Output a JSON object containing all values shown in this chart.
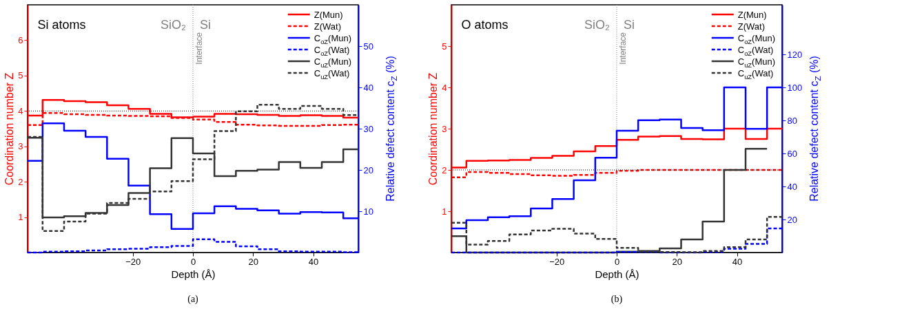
{
  "chart_data": [
    {
      "type": "step",
      "xlabel": "Depth (Å)",
      "ylabel": "Coordination number Z",
      "y2label": "Relative defect content c$_{Z}$ (%)",
      "x": [
        -55,
        -50,
        -42.86,
        -35.71,
        -28.57,
        -21.43,
        -14.29,
        -7.14,
        0,
        7.14,
        14.29,
        21.43,
        28.57,
        35.71,
        42.86,
        50,
        55
      ],
      "xlim": [
        -55,
        55
      ],
      "xticks": [
        -20,
        0,
        20,
        40
      ],
      "ylim": [
        0,
        7
      ],
      "yticks": [
        1,
        2,
        3,
        4,
        5,
        6
      ],
      "y2lim": [
        0,
        60
      ],
      "y2ticks": [
        10,
        20,
        30,
        40,
        50
      ],
      "legend": "top right",
      "grid": false,
      "series": [
        {
          "name": "Z(Mun)",
          "color": "#ff0000",
          "line_style": "solid",
          "values": [
            3.87,
            4.31,
            4.28,
            4.25,
            4.16,
            4.06,
            3.92,
            3.82,
            3.84,
            3.92,
            3.91,
            3.89,
            3.86,
            3.88,
            3.86,
            3.81,
            3.81
          ]
        },
        {
          "name": "Z(Wat)",
          "color": "#ff0000",
          "line_style": "dashed",
          "values": [
            3.6,
            3.94,
            3.91,
            3.89,
            3.87,
            3.86,
            3.85,
            3.8,
            3.76,
            3.69,
            3.61,
            3.59,
            3.58,
            3.58,
            3.6,
            3.61,
            3.61
          ]
        },
        {
          "name": "C$_{oZ}$(Mun)",
          "color": "#0000ff",
          "line_style": "solid",
          "axis": "y2",
          "values": [
            22.2,
            31.3,
            29.5,
            28.0,
            22.7,
            16.2,
            9.3,
            5.7,
            9.5,
            11.2,
            10.6,
            10.2,
            9.4,
            9.8,
            9.7,
            8.3,
            8.3
          ]
        },
        {
          "name": "C$_{oZ}$(Wat)",
          "color": "#0000ff",
          "line_style": "dashed",
          "axis": "y2",
          "values": [
            0,
            0.2,
            0.3,
            0.5,
            0.8,
            0.9,
            1.3,
            1.6,
            3.2,
            2.6,
            1.5,
            0.8,
            0.3,
            0.2,
            0.2,
            0.1,
            0.1
          ]
        },
        {
          "name": "C$_{uZ}$(Mun)",
          "color": "#333333",
          "line_style": "solid",
          "axis": "y2",
          "values": [
            27.8,
            8.5,
            8.8,
            9.6,
            11.5,
            14.4,
            20.4,
            27.7,
            24.0,
            18.5,
            19.8,
            20.1,
            21.9,
            20.5,
            21.9,
            25.0,
            25.0
          ]
        },
        {
          "name": "C$_{uZ}$(Wat)",
          "color": "#333333",
          "line_style": "dashed",
          "axis": "y2",
          "values": [
            28.0,
            5.2,
            7.5,
            9.4,
            12.0,
            13.0,
            14.8,
            17.3,
            22.6,
            29.4,
            34.2,
            35.8,
            34.8,
            35.5,
            34.8,
            33.3,
            33.3
          ]
        }
      ],
      "ref_lines": [
        {
          "axis": "x",
          "value": 0,
          "label": "Interface",
          "color": "#808080",
          "line_style": "dotted"
        },
        {
          "axis": "y",
          "value": 4,
          "label": null,
          "color": "#000000",
          "line_style": "dotted"
        }
      ],
      "annotations": [
        "Si atoms",
        "SiO₂",
        "Si",
        "(a)"
      ]
    },
    {
      "type": "step",
      "xlabel": "Depth (Å)",
      "ylabel": "Coordination number Z",
      "y2label": "Relative defect content c$_{Z}$ (%)",
      "x": [
        -55,
        -50,
        -42.86,
        -35.71,
        -28.57,
        -21.43,
        -14.29,
        -7.14,
        0,
        7.14,
        14.29,
        21.43,
        28.57,
        35.71,
        42.86,
        50,
        55
      ],
      "xlim": [
        -55,
        55
      ],
      "xticks": [
        -20,
        0,
        20,
        40
      ],
      "ylim": [
        0,
        6
      ],
      "yticks": [
        1,
        2,
        3,
        4,
        5
      ],
      "y2lim": [
        0,
        150
      ],
      "y2ticks": [
        20,
        40,
        60,
        80,
        100,
        120
      ],
      "legend": "top right",
      "grid": false,
      "series": [
        {
          "name": "Z(Mun)",
          "color": "#ff0000",
          "line_style": "solid",
          "values": [
            2.06,
            2.22,
            2.23,
            2.24,
            2.29,
            2.34,
            2.45,
            2.58,
            2.73,
            2.81,
            2.82,
            2.75,
            2.74,
            3.0,
            2.75,
            3.0,
            3.0
          ]
        },
        {
          "name": "Z(Wat)",
          "color": "#ff0000",
          "line_style": "dashed",
          "values": [
            1.82,
            1.95,
            1.93,
            1.9,
            1.87,
            1.86,
            1.88,
            1.93,
            1.98,
            2.0,
            2.0,
            2.0,
            2.0,
            2.0,
            2.0,
            2.0,
            2.0
          ]
        },
        {
          "name": "C$_{oZ}$(Mun)",
          "color": "#0000ff",
          "line_style": "solid",
          "axis": "y2",
          "values": [
            14.6,
            19.6,
            21.4,
            22.0,
            26.7,
            32.4,
            43.8,
            57.4,
            73.8,
            80.1,
            80.5,
            75.4,
            74.1,
            100,
            74.9,
            100,
            100
          ]
        },
        {
          "name": "C$_{oZ}$(Wat)",
          "color": "#0000ff",
          "line_style": "dashed",
          "axis": "y2",
          "values": [
            0,
            0,
            0,
            0,
            0,
            0,
            0,
            0,
            0.3,
            0.3,
            0,
            0,
            0.3,
            2.3,
            5.2,
            14.6,
            14.6
          ]
        },
        {
          "name": "C$_{uZ}$(Mun)",
          "color": "#333333",
          "line_style": "solid",
          "axis": "y2",
          "values": [
            9.9,
            0,
            0,
            0,
            0,
            0,
            0,
            0,
            0.5,
            0.9,
            2.5,
            7.9,
            18.7,
            50.0,
            62.8,
            62.8,
            null
          ]
        },
        {
          "name": "C$_{uZ}$(Wat)",
          "color": "#333333",
          "line_style": "dashed",
          "axis": "y2",
          "values": [
            18.0,
            4.8,
            7.0,
            10.9,
            13.3,
            14.4,
            11.5,
            8.2,
            2.8,
            0.5,
            0.3,
            0.2,
            0.9,
            3.2,
            7.9,
            21.6,
            21.6
          ]
        }
      ],
      "ref_lines": [
        {
          "axis": "x",
          "value": 0,
          "label": "Interface",
          "color": "#808080",
          "line_style": "dotted"
        },
        {
          "axis": "y",
          "value": 2,
          "label": null,
          "color": "#000000",
          "line_style": "dotted"
        }
      ],
      "annotations": [
        "O atoms",
        "SiO₂",
        "Si",
        "(b)"
      ]
    }
  ]
}
